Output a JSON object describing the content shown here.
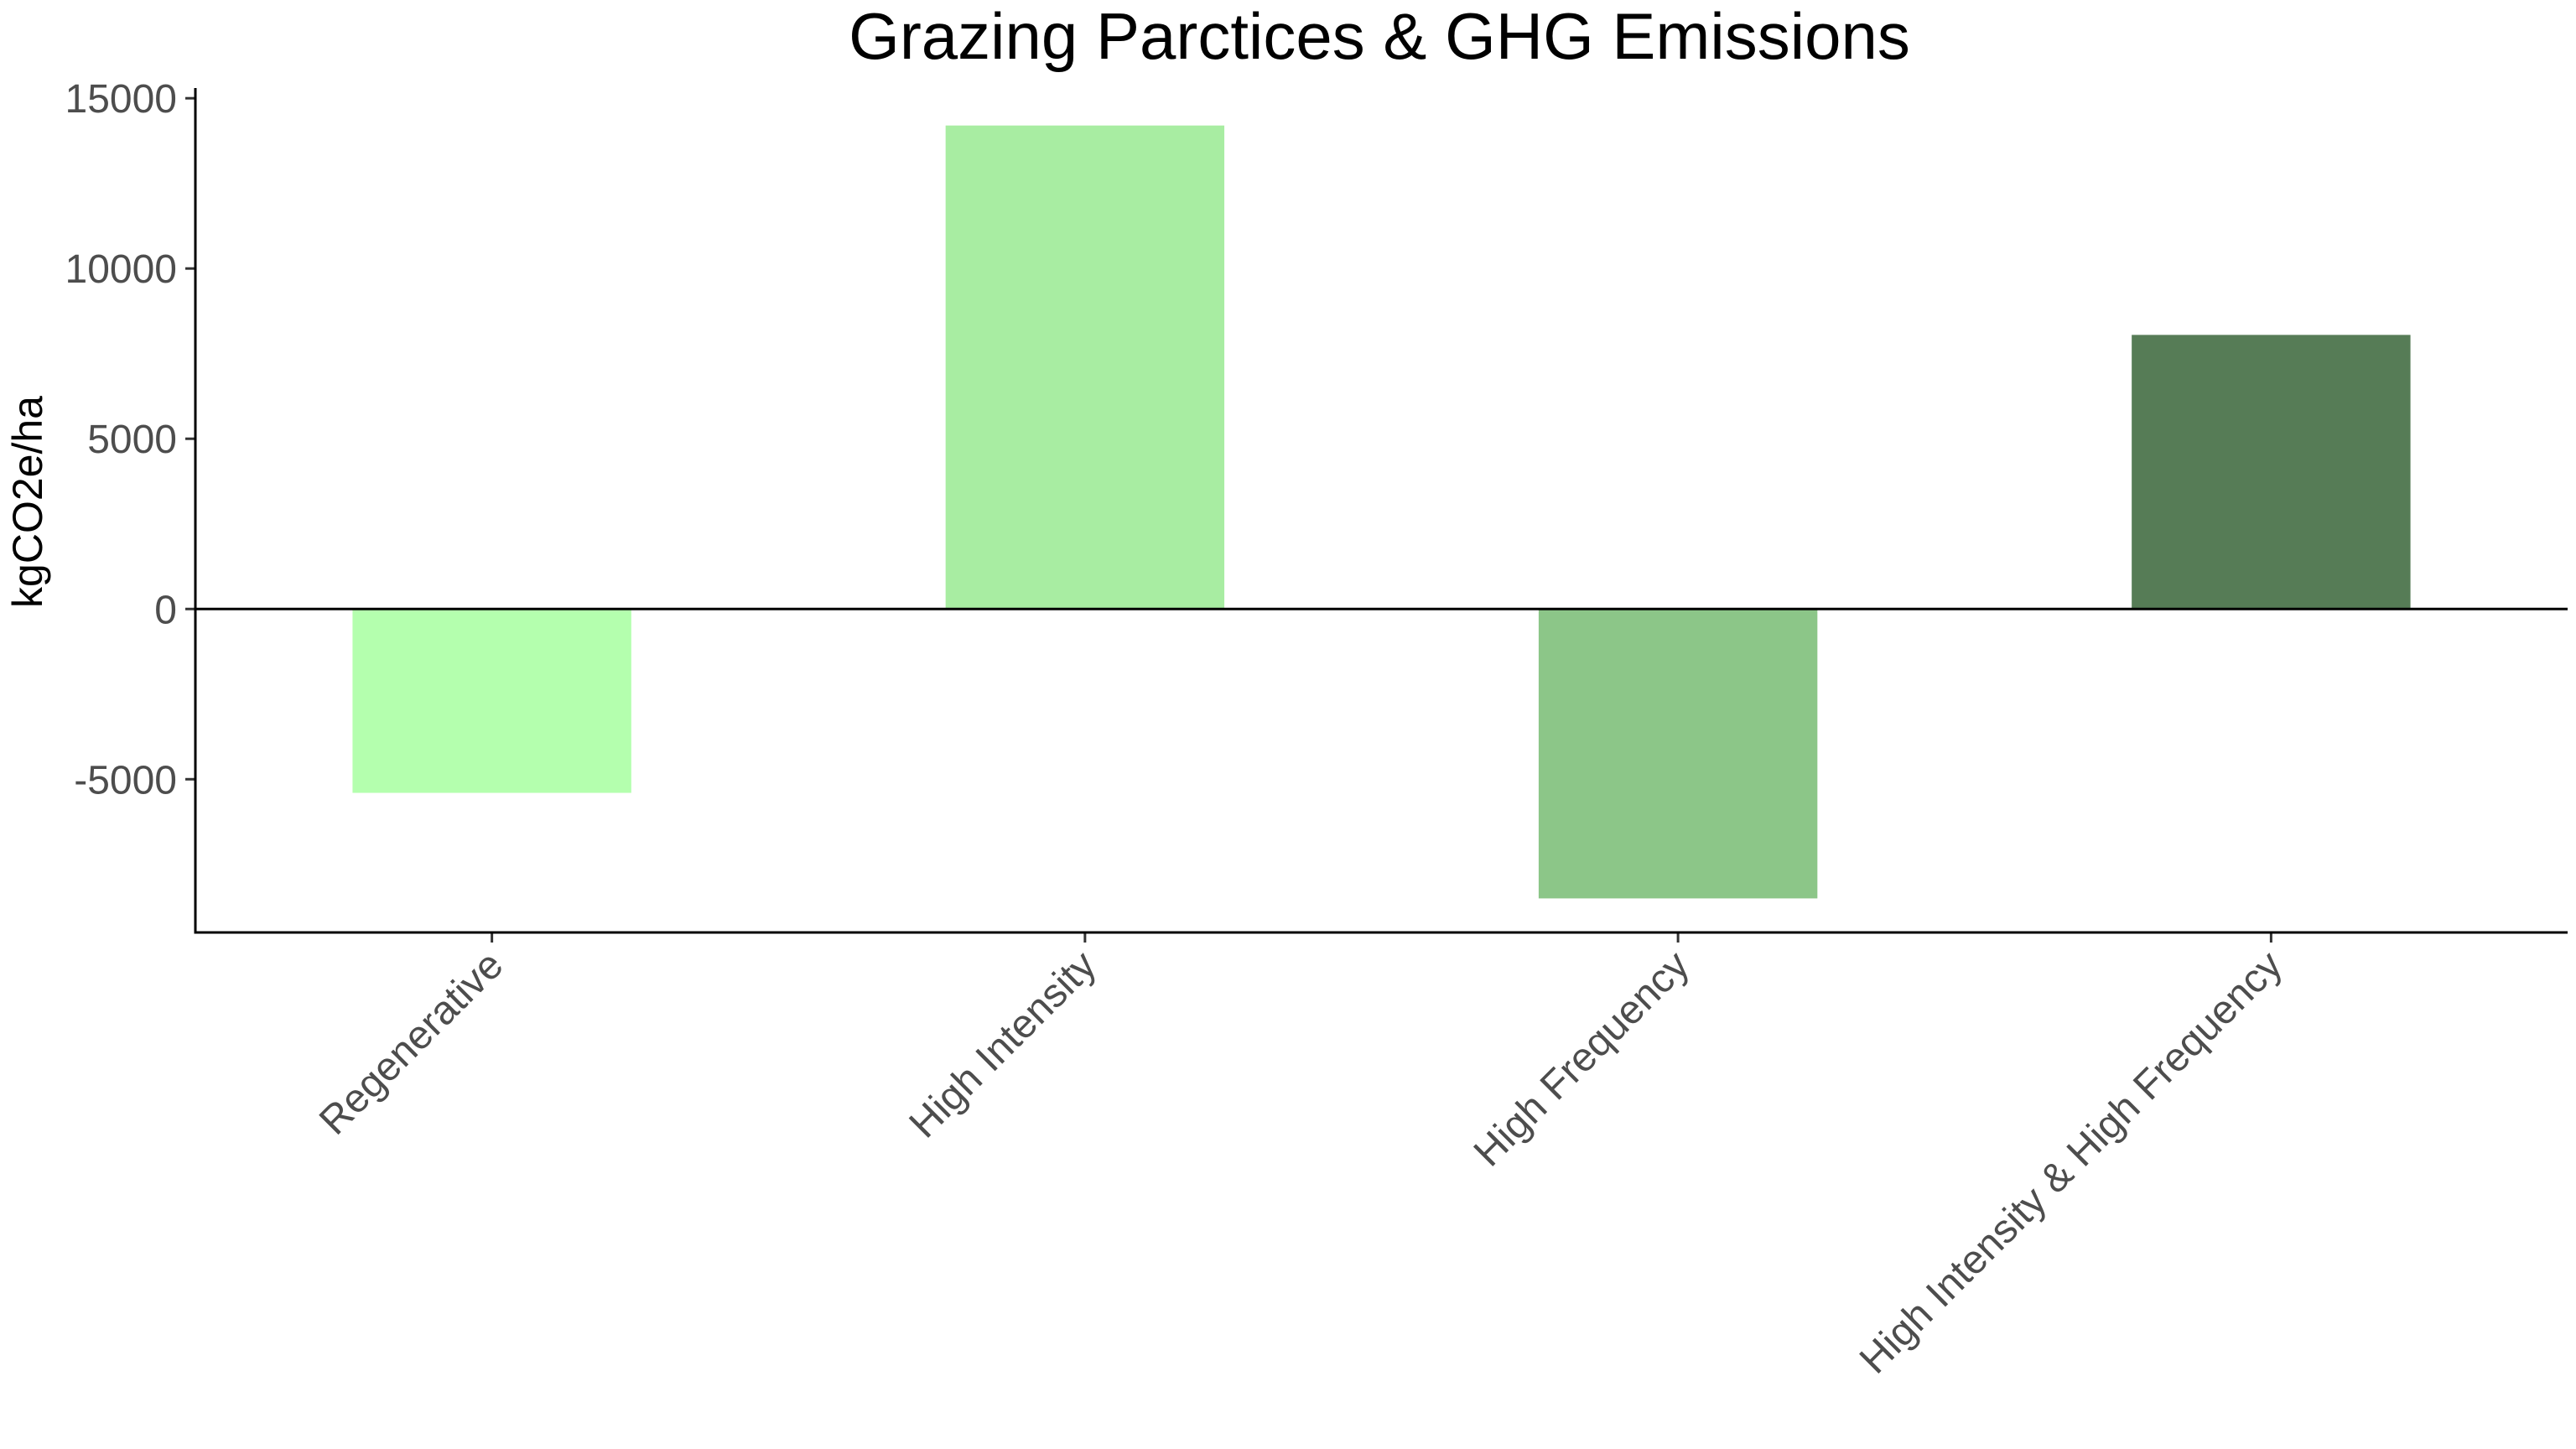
{
  "chart_data": {
    "type": "bar",
    "title": "Grazing Parctices & GHG Emissions",
    "xlabel": "",
    "ylabel": "kgCO2e/ha",
    "categories": [
      "Regenerative",
      "High Intensity",
      "High Frequency",
      "High Intensity & High Frequency"
    ],
    "values": [
      -5400,
      14200,
      -8500,
      8050
    ],
    "colors": [
      "#b4ffae",
      "#a8eda2",
      "#8cc688",
      "#567c56"
    ],
    "ylim": [
      -9500,
      15300
    ],
    "yticks": [
      -5000,
      0,
      5000,
      10000,
      15000
    ],
    "ytick_labels": [
      "-5000",
      "0",
      "5000",
      "10000",
      "15000"
    ],
    "zero_line": true,
    "grid": false,
    "legend": "none"
  }
}
